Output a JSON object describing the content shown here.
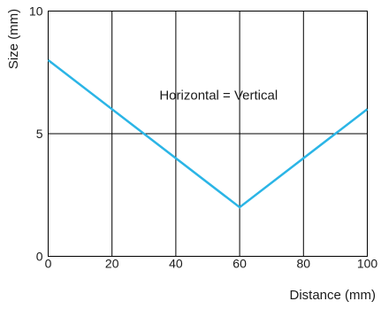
{
  "chart_data": {
    "type": "line",
    "xlabel": "Distance (mm)",
    "ylabel": "Size (mm)",
    "xlim": [
      0,
      100
    ],
    "ylim": [
      0,
      10
    ],
    "x_ticks": [
      0,
      20,
      40,
      60,
      80,
      100
    ],
    "y_ticks": [
      0,
      5,
      10
    ],
    "grid": true,
    "series": [
      {
        "x": [
          0,
          60,
          100
        ],
        "values": [
          8,
          2,
          6
        ],
        "color": "#2bb5e6"
      }
    ],
    "annotations": [
      {
        "text": "Horizontal = Vertical",
        "x": 35,
        "y": 6.5
      }
    ]
  }
}
